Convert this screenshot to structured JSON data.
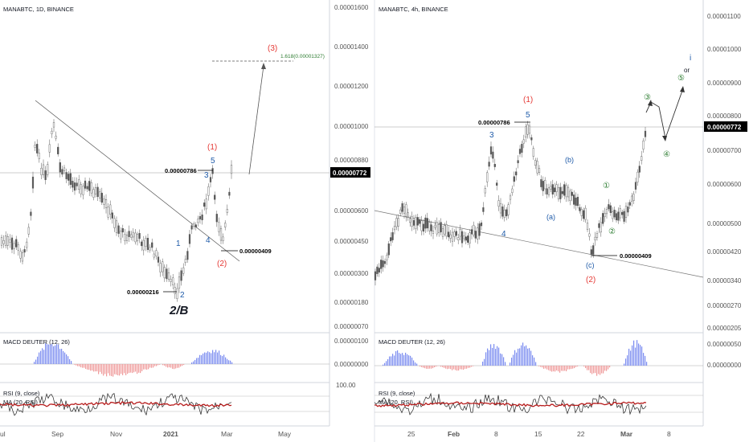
{
  "colors": {
    "up": "#26a69a",
    "candle": "#555555",
    "wave_red": "#e53935",
    "wave_blue": "#1e5aa8",
    "wave_green": "#2e7d32",
    "macd_pos": "#7b8cf0",
    "macd_neg": "#ef9a9a",
    "rsi_line": "#222222",
    "rsi_ma": "#b71c1c",
    "price_tag_bg": "#000000",
    "price_tag_text": "#ffffff"
  },
  "left": {
    "title": "MANABTC, 1D, BINANCE",
    "price_axis": [
      "0.00001600",
      "0.00001400",
      "0.00001200",
      "0.00001000",
      "0.00000880",
      "0.00000600",
      "0.00000450",
      "0.00000300",
      "0.00000180",
      "0.00000070"
    ],
    "current_price": "0.00000772",
    "x_axis": [
      "ul",
      "Sep",
      "Nov",
      "2021",
      "Mar",
      "May"
    ],
    "annotations": {
      "wave3_red": "(3)",
      "fib": "1.618(0.00001327)",
      "wave1_red": "(1)",
      "wave5": "5",
      "wave3": "3",
      "wave4": "4",
      "wave1": "1",
      "wave2": "2",
      "wave2_red": "(2)",
      "label_2B": "2/B",
      "high_price": "0.00000786",
      "low_price": "0.00000216",
      "mid_price": "0.00000409"
    },
    "macd": {
      "title": "MACD DEUTER (12, 26)",
      "axis": [
        "0.00000100",
        "0.00000000"
      ]
    },
    "rsi": {
      "title": "RSI (9, close)",
      "ma_title": "MA (20, RSI)",
      "axis": [
        "100.00"
      ]
    }
  },
  "right": {
    "title": "MANABTC, 4h, BINANCE",
    "price_axis": [
      "0.00001100",
      "0.00001000",
      "0.00000900",
      "0.00000800",
      "0.00000700",
      "0.00000600",
      "0.00000500",
      "0.00000420",
      "0.00000340",
      "0.00000270",
      "0.00000205"
    ],
    "current_price": "0.00000772",
    "x_axis": [
      "25",
      "Feb",
      "8",
      "15",
      "22",
      "Mar",
      "8"
    ],
    "annotations": {
      "wave1_red": "(1)",
      "wave5": "5",
      "wave3": "3",
      "wave4": "4",
      "wave_b": "(b)",
      "wave_a": "(a)",
      "wave_c": "(c)",
      "wave2_red": "(2)",
      "c1": "①",
      "c2": "②",
      "c3": "③",
      "c4": "④",
      "c5": "⑤",
      "i": "i",
      "or": "or",
      "high_price": "0.00000786",
      "low_price": "0.00000409"
    },
    "macd": {
      "title": "MACD DEUTER (12, 26)",
      "axis": [
        "0.00000050",
        "0.00000000"
      ]
    },
    "rsi": {
      "title": "RSI (9, close)",
      "ma_title": "MA (20, RSI)"
    }
  }
}
